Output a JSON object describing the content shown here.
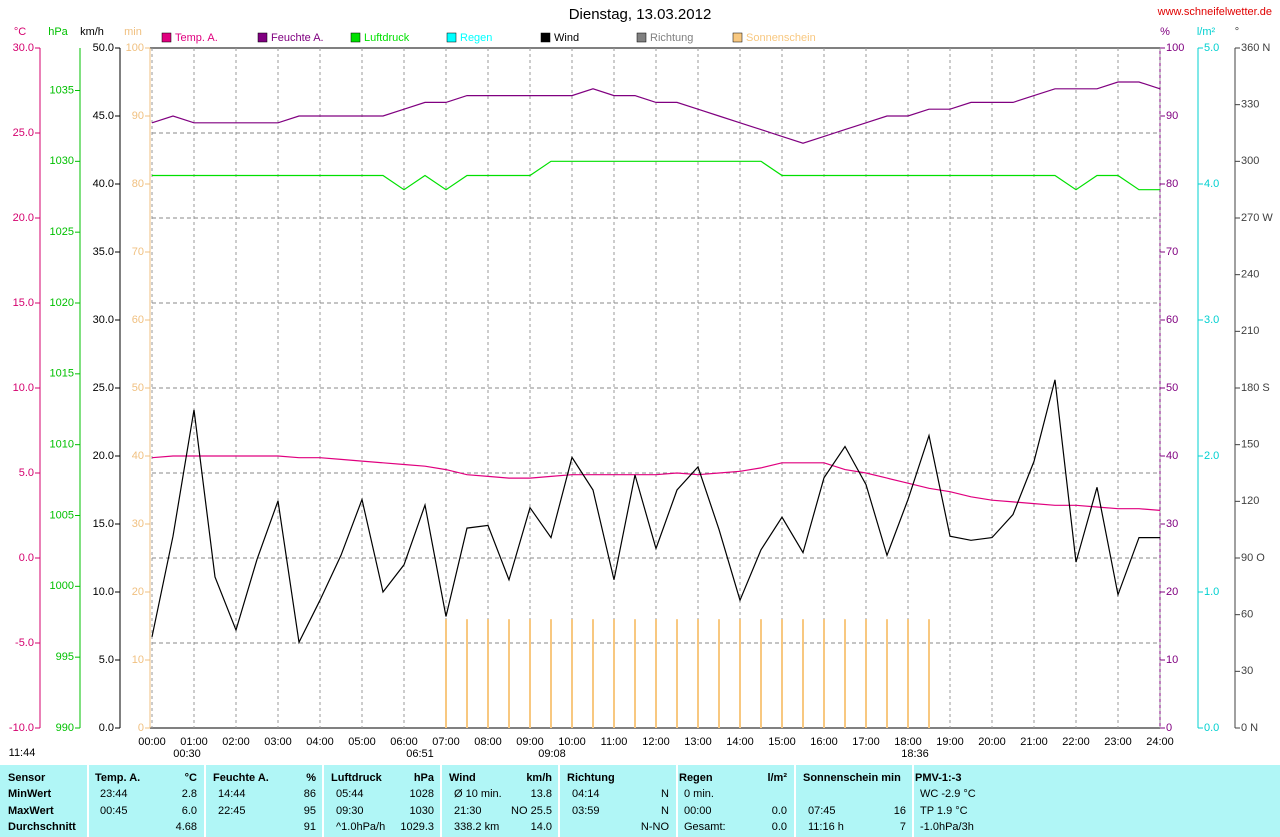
{
  "chart_data": {
    "type": "line",
    "title": "Dienstag, 13.03.2012",
    "source": "www.schneifelwetter.de",
    "x": [
      0,
      0.5,
      1,
      1.5,
      2,
      2.5,
      3,
      3.5,
      4,
      4.5,
      5,
      5.5,
      6,
      6.5,
      7,
      7.5,
      8,
      8.5,
      9,
      9.5,
      10,
      10.5,
      11,
      11.5,
      12,
      12.5,
      13,
      13.5,
      14,
      14.5,
      15,
      15.5,
      16,
      16.5,
      17,
      17.5,
      18,
      18.5,
      19,
      19.5,
      20,
      20.5,
      21,
      21.5,
      22,
      22.5,
      23,
      23.5,
      24
    ],
    "xlim": [
      0,
      24
    ],
    "xticks": [
      {
        "value": 0,
        "label": "00:00"
      },
      {
        "value": 1,
        "label": "01:00"
      },
      {
        "value": 2,
        "label": "02:00"
      },
      {
        "value": 3,
        "label": "03:00"
      },
      {
        "value": 4,
        "label": "04:00"
      },
      {
        "value": 5,
        "label": "05:00"
      },
      {
        "value": 6,
        "label": "06:00"
      },
      {
        "value": 7,
        "label": "07:00"
      },
      {
        "value": 8,
        "label": "08:00"
      },
      {
        "value": 9,
        "label": "09:00"
      },
      {
        "value": 10,
        "label": "10:00"
      },
      {
        "value": 11,
        "label": "11:00"
      },
      {
        "value": 12,
        "label": "12:00"
      },
      {
        "value": 13,
        "label": "13:00"
      },
      {
        "value": 14,
        "label": "14:00"
      },
      {
        "value": 15,
        "label": "15:00"
      },
      {
        "value": 16,
        "label": "16:00"
      },
      {
        "value": 17,
        "label": "17:00"
      },
      {
        "value": 18,
        "label": "18:00"
      },
      {
        "value": 19,
        "label": "19:00"
      },
      {
        "value": 20,
        "label": "20:00"
      },
      {
        "value": 21,
        "label": "21:00"
      },
      {
        "value": 22,
        "label": "22:00"
      },
      {
        "value": 23,
        "label": "23:00"
      },
      {
        "value": 24,
        "label": "24:00"
      }
    ],
    "axes": [
      {
        "name": "°C",
        "side": "left",
        "color": "#d4006e",
        "ylim": [
          -10,
          30
        ],
        "yticks": [
          {
            "value": -10,
            "label": "-10.0"
          },
          {
            "value": -5,
            "label": "-5.0"
          },
          {
            "value": 0,
            "label": "0.0"
          },
          {
            "value": 5,
            "label": "5.0"
          },
          {
            "value": 10,
            "label": "10.0"
          },
          {
            "value": 15,
            "label": "15.0"
          },
          {
            "value": 20,
            "label": "20.0"
          },
          {
            "value": 25,
            "label": "25.0"
          },
          {
            "value": 30,
            "label": "30.0"
          }
        ]
      },
      {
        "name": "hPa",
        "side": "left",
        "color": "#00c000",
        "ylim": [
          990,
          1038
        ],
        "yticks": [
          990,
          995,
          1000,
          1005,
          1010,
          1015,
          1020,
          1025,
          1030,
          1035
        ]
      },
      {
        "name": "km/h",
        "side": "left",
        "color": "#000000",
        "ylim": [
          0,
          50
        ],
        "yticks": [
          {
            "value": 0,
            "label": "0.0"
          },
          {
            "value": 5,
            "label": "5.0"
          },
          {
            "value": 10,
            "label": "10.0"
          },
          {
            "value": 15,
            "label": "15.0"
          },
          {
            "value": 20,
            "label": "20.0"
          },
          {
            "value": 25,
            "label": "25.0"
          },
          {
            "value": 30,
            "label": "30.0"
          },
          {
            "value": 35,
            "label": "35.0"
          },
          {
            "value": 40,
            "label": "40.0"
          },
          {
            "value": 45,
            "label": "45.0"
          },
          {
            "value": 50,
            "label": "50.0"
          }
        ]
      },
      {
        "name": "min",
        "side": "left",
        "color": "#f0c080",
        "ylim": [
          0,
          100
        ],
        "yticks": [
          0,
          10,
          20,
          30,
          40,
          50,
          60,
          70,
          80,
          90,
          100
        ]
      },
      {
        "name": "%",
        "side": "right",
        "color": "#800080",
        "ylim": [
          0,
          100
        ],
        "yticks": [
          0,
          10,
          20,
          30,
          40,
          50,
          60,
          70,
          80,
          90,
          100
        ]
      },
      {
        "name": "l/m²",
        "side": "right",
        "color": "#00d0d0",
        "ylim": [
          0,
          5
        ],
        "yticks": [
          {
            "value": 0,
            "label": "0.0"
          },
          {
            "value": 1,
            "label": "1.0"
          },
          {
            "value": 2,
            "label": "2.0"
          },
          {
            "value": 3,
            "label": "3.0"
          },
          {
            "value": 4,
            "label": "4.0"
          },
          {
            "value": 5,
            "label": "5.0"
          }
        ]
      },
      {
        "name": "°",
        "side": "right",
        "color": "#404040",
        "ylim": [
          0,
          360
        ],
        "yticks": [
          {
            "value": 0,
            "label": "0 N"
          },
          30,
          60,
          {
            "value": 90,
            "label": "90 O"
          },
          120,
          150,
          {
            "value": 180,
            "label": "180 S"
          },
          210,
          240,
          {
            "value": 270,
            "label": "270 W"
          },
          300,
          330,
          {
            "value": 360,
            "label": "360 N"
          }
        ]
      }
    ],
    "grid": true,
    "direction_grid": [
      45,
      90,
      135,
      180,
      225,
      270,
      315
    ],
    "series": [
      {
        "name": "Temp. A.",
        "color": "#e0007f",
        "axis": 0,
        "kind": "line",
        "values": [
          5.9,
          6.0,
          6.0,
          6.0,
          6.0,
          6.0,
          6.0,
          5.9,
          5.9,
          5.8,
          5.7,
          5.6,
          5.5,
          5.4,
          5.2,
          4.9,
          4.8,
          4.7,
          4.7,
          4.8,
          4.9,
          4.9,
          4.9,
          4.9,
          4.9,
          5.0,
          4.9,
          5.0,
          5.1,
          5.3,
          5.6,
          5.6,
          5.6,
          5.2,
          5.0,
          4.7,
          4.4,
          4.1,
          3.9,
          3.6,
          3.4,
          3.3,
          3.2,
          3.1,
          3.1,
          3.0,
          2.9,
          2.9,
          2.8
        ]
      },
      {
        "name": "Feuchte A.",
        "color": "#800080",
        "axis": 4,
        "kind": "line",
        "values": [
          89,
          90,
          89,
          89,
          89,
          89,
          89,
          90,
          90,
          90,
          90,
          90,
          91,
          92,
          92,
          93,
          93,
          93,
          93,
          93,
          93,
          94,
          93,
          93,
          92,
          92,
          91,
          90,
          89,
          88,
          87,
          86,
          87,
          88,
          89,
          90,
          90,
          91,
          91,
          92,
          92,
          92,
          93,
          94,
          94,
          94,
          95,
          95,
          94
        ]
      },
      {
        "name": "Luftdruck",
        "color": "#00e000",
        "axis": 1,
        "kind": "line",
        "values": [
          1029,
          1029,
          1029,
          1029,
          1029,
          1029,
          1029,
          1029,
          1029,
          1029,
          1029,
          1029,
          1028,
          1029,
          1028,
          1029,
          1029,
          1029,
          1029,
          1030,
          1030,
          1030,
          1030,
          1030,
          1030,
          1030,
          1030,
          1030,
          1030,
          1030,
          1029,
          1029,
          1029,
          1029,
          1029,
          1029,
          1029,
          1029,
          1029,
          1029,
          1029,
          1029,
          1029,
          1029,
          1028,
          1029,
          1029,
          1028,
          1028
        ]
      },
      {
        "name": "Regen",
        "color": "#00ffff"
      },
      {
        "name": "Wind",
        "color": "#000000",
        "axis": 2,
        "kind": "line",
        "values": [
          6.7,
          14.1,
          23.4,
          11.1,
          7.2,
          12.4,
          16.7,
          6.3,
          9.4,
          12.7,
          16.8,
          10,
          12,
          16.4,
          8.2,
          14.7,
          14.9,
          10.9,
          16.2,
          14,
          19.9,
          17.5,
          10.9,
          18.6,
          13.2,
          17.5,
          19.2,
          14.6,
          9.4,
          13.1,
          15.5,
          12.9,
          18.4,
          20.7,
          17.9,
          12.7,
          16.8,
          21.5,
          14.1,
          13.8,
          14,
          15.7,
          19.6,
          25.6,
          12.2,
          17.7,
          9.8,
          14,
          14
        ]
      },
      {
        "name": "Richtung",
        "color": "#808080"
      },
      {
        "name": "Sonnenschein",
        "color": "#f8c880",
        "axis": 3,
        "kind": "bar",
        "values": [
          0,
          0,
          0,
          0,
          0,
          0,
          0,
          0,
          0,
          0,
          0,
          0,
          0,
          0,
          16,
          16,
          16,
          16,
          16,
          16,
          16,
          16,
          16,
          16,
          16,
          16,
          16,
          16,
          16,
          16,
          16,
          16,
          16,
          16,
          16,
          16,
          16,
          16,
          0,
          0,
          0,
          0,
          0,
          0,
          0,
          0,
          0,
          0,
          0
        ]
      }
    ],
    "annotations": [
      "11:44",
      "00:30",
      "06:51",
      "09:08",
      "18:36"
    ]
  },
  "table": {
    "rows": [
      [
        "Sensor",
        "Temp. A.",
        "°C",
        "Feuchte A.",
        "%",
        "Luftdruck",
        "hPa",
        "Wind",
        "km/h",
        "Richtung",
        null,
        "Regen",
        "l/m²",
        "Sonnenschein min",
        null,
        "PMV-1:-3"
      ],
      [
        "MinWert",
        "23:44",
        "2.8",
        "14:44",
        "86",
        "05:44",
        "1028",
        "Ø 10 min.",
        "13.8",
        "04:14",
        "N",
        "0 min.",
        null,
        null,
        null,
        "WC -2.9 °C"
      ],
      [
        "MaxWert",
        "00:45",
        "6.0",
        "22:45",
        "95",
        "09:30",
        "1030",
        "21:30",
        "NO 25.5",
        "03:59",
        "N",
        "00:00",
        "0.0",
        "07:45",
        "16",
        "TP 1.9 °C"
      ],
      [
        "Durchschnitt",
        null,
        "4.68",
        null,
        "91",
        "^1.0hPa/h",
        "1029.3",
        "338.2 km",
        "14.0",
        null,
        "N-NO",
        "Gesamt:",
        "0.0",
        "11:16 h",
        "7",
        "-1.0hPa/3h"
      ]
    ]
  }
}
